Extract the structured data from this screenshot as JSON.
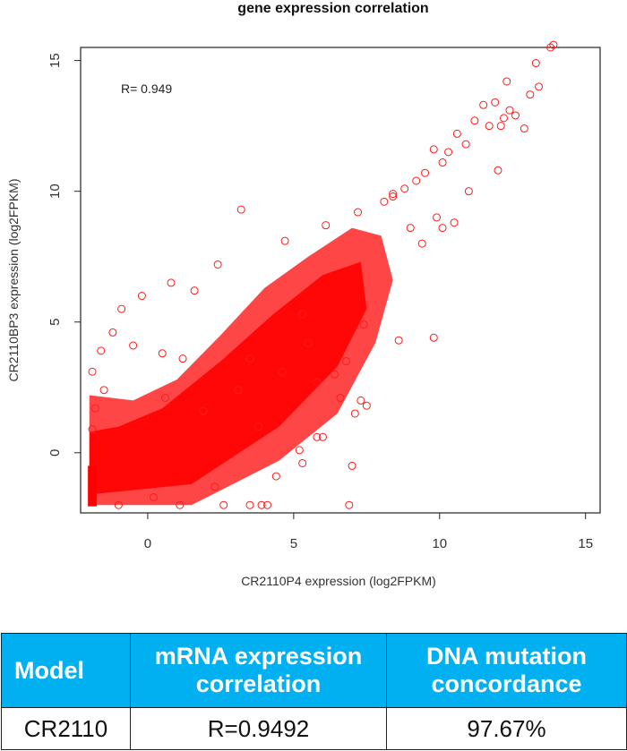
{
  "chart_data": {
    "type": "scatter",
    "title": "gene expression correlation",
    "xlabel": "CR2110P4  expression (log2FPKM)",
    "ylabel": "CR2110BP3  expression (log2FPKM)",
    "xlim": [
      -2.3,
      15.5
    ],
    "ylim": [
      -2.3,
      15.5
    ],
    "xticks": [
      0,
      5,
      10,
      15
    ],
    "yticks": [
      0,
      5,
      10,
      15
    ],
    "annotation": "R= 0.949",
    "marker": "open-circle",
    "color": "#ff1a1a",
    "correlation_r": 0.949,
    "points_x": [
      13.9,
      13.8,
      13.3,
      13.4,
      13.1,
      12.9,
      12.6,
      12.4,
      12.1,
      12.2,
      11.7,
      11.5,
      11.9,
      12.3,
      11.2,
      10.9,
      10.6,
      10.3,
      10.1,
      9.8,
      9.5,
      9.2,
      8.8,
      8.4,
      8.1,
      9.9,
      11.0,
      12.0,
      10.5,
      9.0,
      3.2,
      1.6,
      -0.9,
      -0.2,
      0.8,
      2.4,
      4.7,
      6.1,
      7.2,
      8.4,
      10.1,
      9.4,
      7.4,
      8.6,
      9.8,
      5.3,
      6.4,
      3.5,
      1.2,
      0.5,
      -0.5,
      -1.2,
      -1.6,
      -1.9,
      -1.8,
      -1.9,
      -1.5,
      0.6,
      1.9,
      3.1,
      4.6,
      5.8,
      6.6,
      7.1,
      6.0,
      5.3,
      4.4,
      3.9,
      1.1,
      2.6,
      4.1,
      5.8,
      7.0,
      7.3,
      3.5,
      6.9,
      7.5,
      5.2,
      2.3,
      0.2,
      -1.0,
      6.8,
      5.5,
      3.8
    ],
    "points_y": [
      15.6,
      15.5,
      14.9,
      14.0,
      13.7,
      12.4,
      12.9,
      13.1,
      12.5,
      12.8,
      12.5,
      13.3,
      13.4,
      14.2,
      12.7,
      11.8,
      12.2,
      11.5,
      11.1,
      11.6,
      10.7,
      10.4,
      10.1,
      9.8,
      9.6,
      9.0,
      10.0,
      10.8,
      8.8,
      8.6,
      9.3,
      6.2,
      5.5,
      6.0,
      6.5,
      7.2,
      8.1,
      8.7,
      9.2,
      9.9,
      8.6,
      8.0,
      4.9,
      4.3,
      4.4,
      5.3,
      3.0,
      3.6,
      3.6,
      3.8,
      4.1,
      4.6,
      3.9,
      3.1,
      1.7,
      0.9,
      2.4,
      2.1,
      1.6,
      2.4,
      3.1,
      2.7,
      2.1,
      1.5,
      0.6,
      -0.4,
      -0.9,
      -2.0,
      -2.0,
      -2.0,
      -2.0,
      0.6,
      -0.5,
      2.0,
      -2.0,
      -2.0,
      1.8,
      0.1,
      -1.3,
      -1.7,
      -2.0,
      3.5,
      4.2,
      1.0
    ]
  },
  "table": {
    "headers": [
      "Model",
      "mRNA expression correlation",
      "DNA mutation concordance"
    ],
    "rows": [
      [
        "CR2110",
        "R=0.9492",
        "97.67%"
      ]
    ]
  }
}
